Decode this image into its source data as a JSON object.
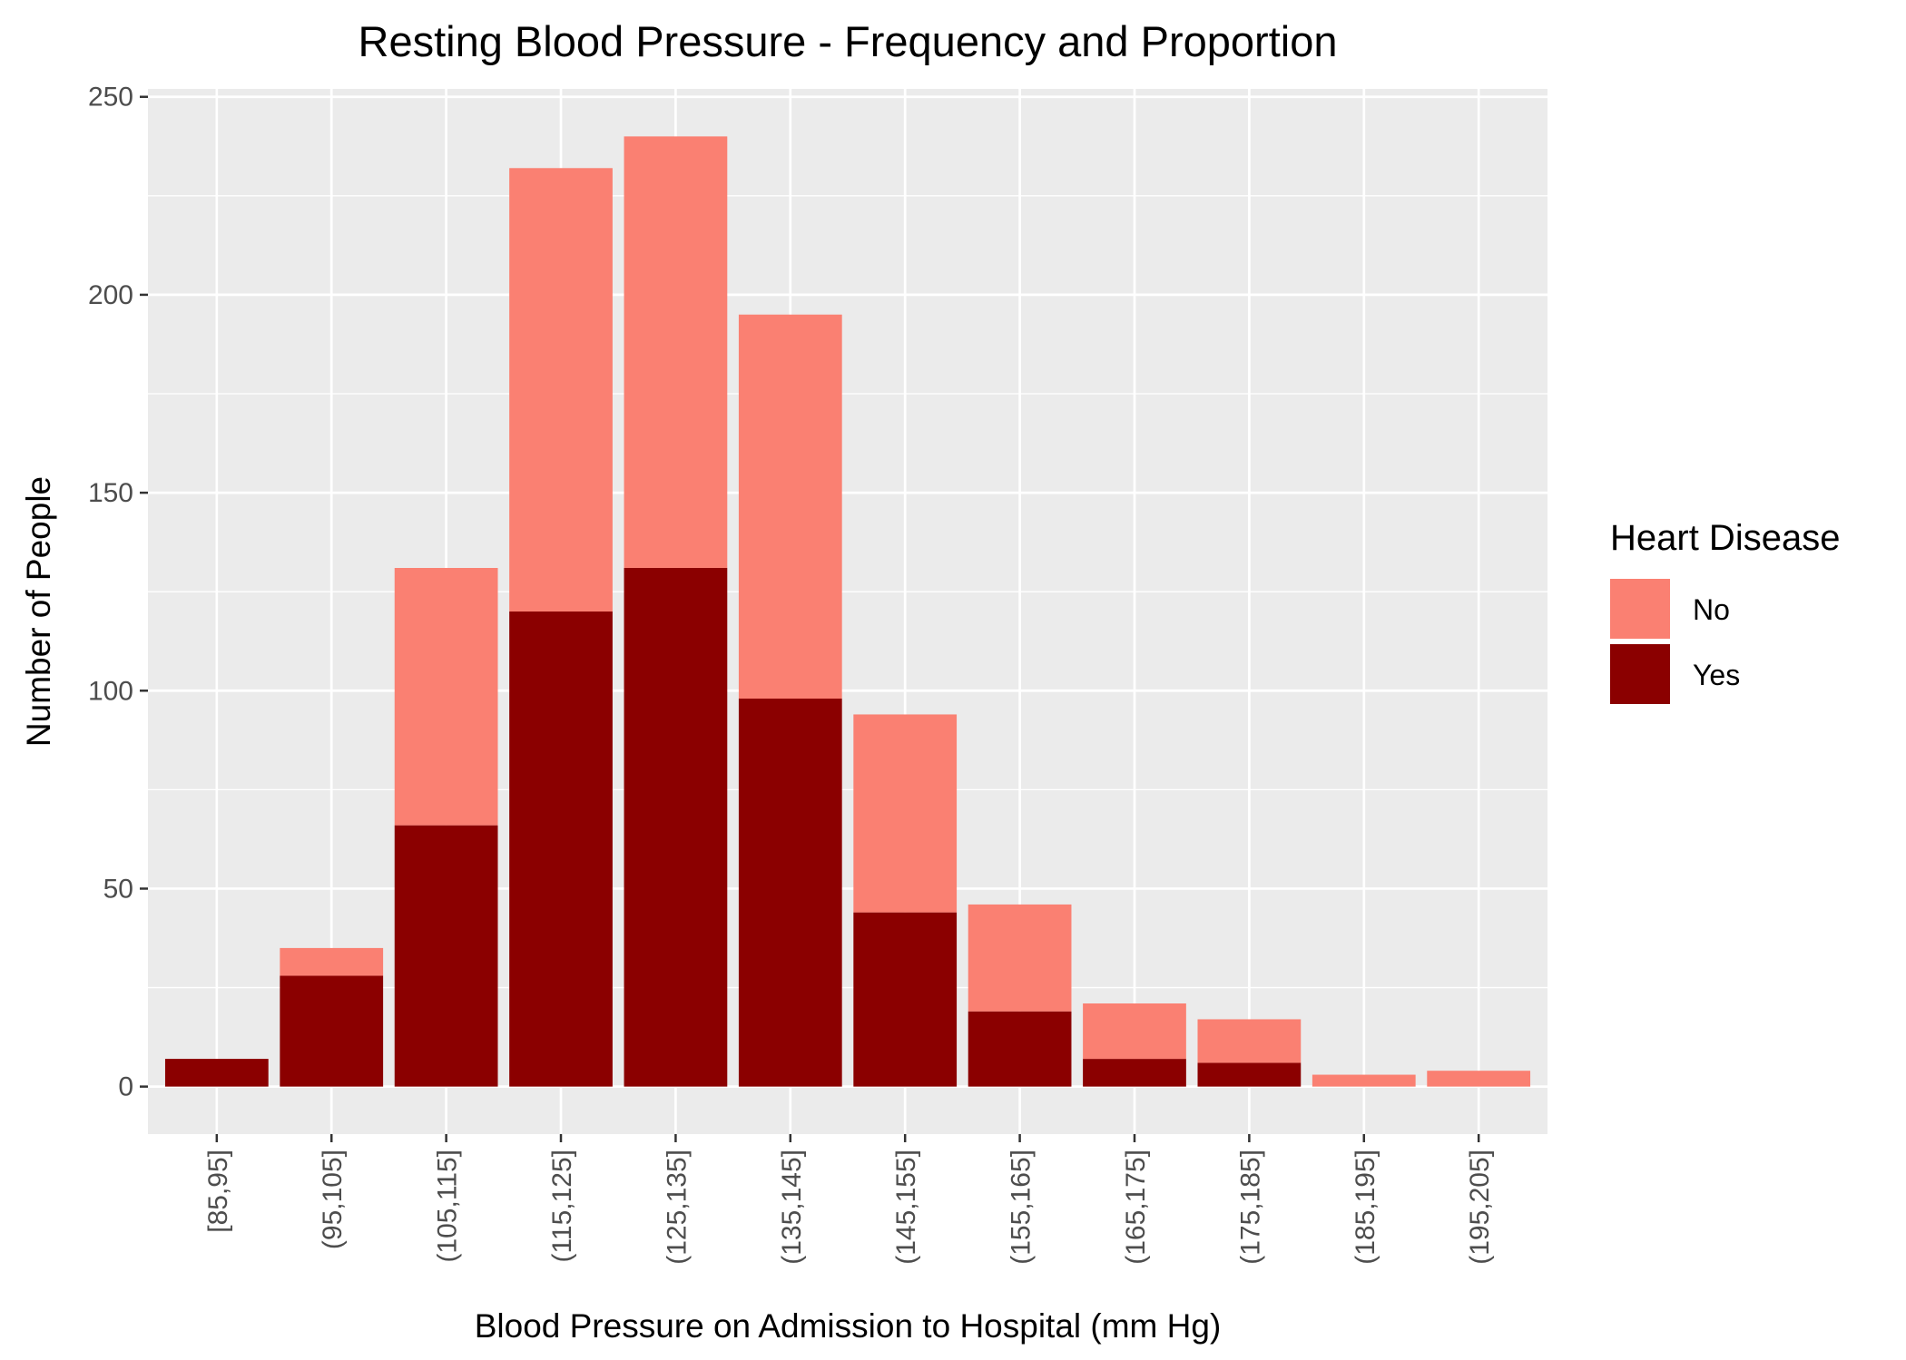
{
  "chart_data": {
    "type": "bar",
    "stacked": true,
    "title": "Resting Blood Pressure - Frequency and Proportion",
    "xlabel": "Blood Pressure on Admission to Hospital (mm Hg)",
    "ylabel": "Number of People",
    "categories": [
      "[85,95]",
      "(95,105]",
      "(105,115]",
      "(115,125]",
      "(125,135]",
      "(135,145]",
      "(145,155]",
      "(155,165]",
      "(165,175]",
      "(175,185]",
      "(185,195]",
      "(195,205]"
    ],
    "series": [
      {
        "name": "No",
        "color": "#FA8072",
        "values": [
          0,
          7,
          65,
          112,
          109,
          97,
          50,
          27,
          14,
          11,
          3,
          4
        ]
      },
      {
        "name": "Yes",
        "color": "#8B0000",
        "values": [
          7,
          28,
          66,
          120,
          131,
          98,
          44,
          19,
          7,
          6,
          0,
          0
        ]
      }
    ],
    "ylim": [
      -12,
      252
    ],
    "yticks": [
      0,
      50,
      100,
      150,
      200,
      250
    ],
    "grid": true,
    "legend": {
      "title": "Heart Disease",
      "placement": "right"
    },
    "panel_background": "#EBEBEB",
    "grid_color": "#FFFFFF"
  }
}
